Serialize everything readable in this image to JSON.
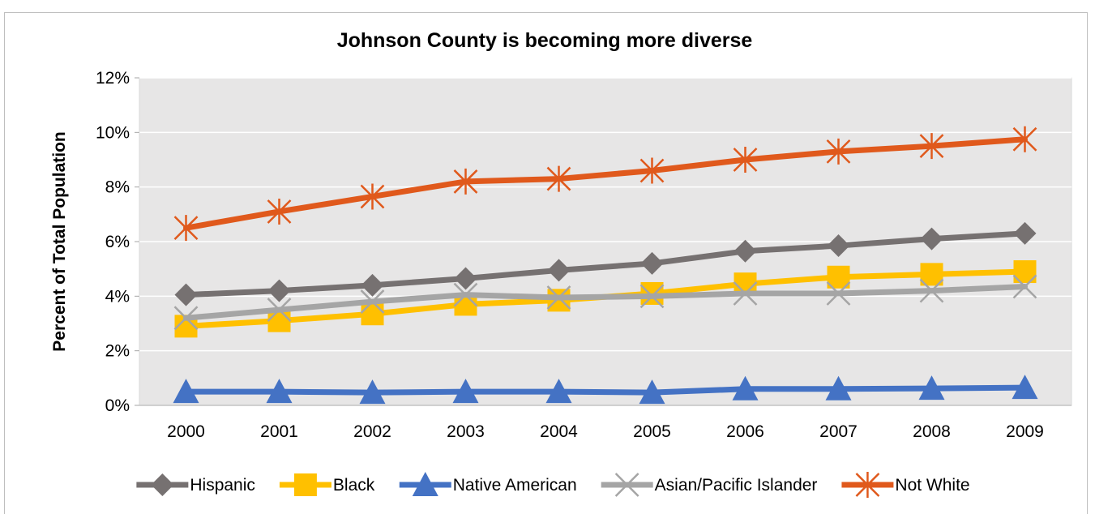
{
  "chart_data": {
    "type": "line",
    "title": "Johnson County is becoming more diverse",
    "xlabel": "",
    "ylabel": "Percent of Total Population",
    "categories": [
      "2000",
      "2001",
      "2002",
      "2003",
      "2004",
      "2005",
      "2006",
      "2007",
      "2008",
      "2009"
    ],
    "y_ticks": [
      "0%",
      "2%",
      "4%",
      "6%",
      "8%",
      "10%",
      "12%"
    ],
    "ylim": [
      0,
      12
    ],
    "grid": true,
    "legend_position": "bottom",
    "series": [
      {
        "name": "Hispanic",
        "color": "#767171",
        "marker": "diamond",
        "values": [
          4.05,
          4.2,
          4.4,
          4.65,
          4.95,
          5.2,
          5.65,
          5.85,
          6.1,
          6.3
        ]
      },
      {
        "name": "Black",
        "color": "#ffc000",
        "marker": "square",
        "values": [
          2.9,
          3.1,
          3.35,
          3.7,
          3.85,
          4.1,
          4.45,
          4.7,
          4.8,
          4.9
        ]
      },
      {
        "name": "Native American",
        "color": "#4472c4",
        "marker": "triangle",
        "values": [
          0.5,
          0.5,
          0.47,
          0.5,
          0.5,
          0.47,
          0.6,
          0.6,
          0.62,
          0.65
        ]
      },
      {
        "name": "Asian/Pacific Islander",
        "color": "#a5a5a5",
        "marker": "x",
        "values": [
          3.2,
          3.5,
          3.8,
          4.05,
          3.95,
          4.0,
          4.1,
          4.1,
          4.2,
          4.35
        ]
      },
      {
        "name": "Not White",
        "color": "#e0591c",
        "marker": "star",
        "values": [
          6.5,
          7.1,
          7.65,
          8.2,
          8.3,
          8.6,
          9.0,
          9.3,
          9.5,
          9.75
        ]
      }
    ]
  }
}
